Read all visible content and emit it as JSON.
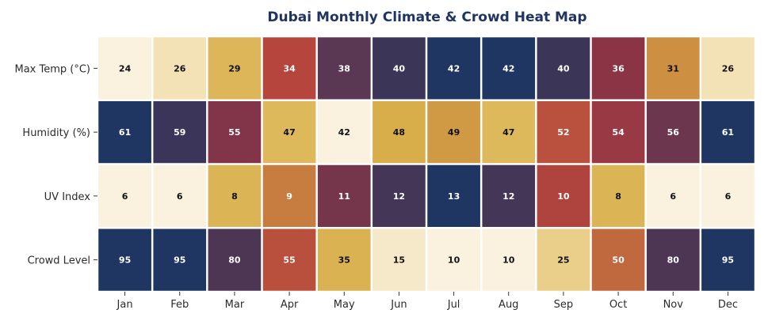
{
  "chart_data": {
    "type": "heatmap",
    "title": "Dubai Monthly Climate & Crowd Heat Map",
    "xlabel": "",
    "ylabel": "",
    "columns": [
      "Jan",
      "Feb",
      "Mar",
      "Apr",
      "May",
      "Jun",
      "Jul",
      "Aug",
      "Sep",
      "Oct",
      "Nov",
      "Dec"
    ],
    "rows": [
      {
        "name": "Max Temp (°C)",
        "values": [
          24,
          26,
          29,
          34,
          38,
          40,
          42,
          42,
          40,
          36,
          31,
          26
        ]
      },
      {
        "name": "Humidity (%)",
        "values": [
          61,
          59,
          55,
          47,
          42,
          48,
          49,
          47,
          52,
          54,
          56,
          61
        ]
      },
      {
        "name": "UV Index",
        "values": [
          6,
          6,
          8,
          9,
          11,
          12,
          13,
          12,
          10,
          8,
          6,
          6
        ]
      },
      {
        "name": "Crowd Level",
        "values": [
          95,
          95,
          80,
          55,
          35,
          15,
          10,
          10,
          25,
          50,
          80,
          95
        ]
      }
    ],
    "colormap": [
      "#faf1de",
      "#f3e2b6",
      "#e2c26a",
      "#d6aa45",
      "#c4743f",
      "#b5453d",
      "#8a3446",
      "#5a3752",
      "#3b3558",
      "#1f3662"
    ],
    "normalization": "per-row",
    "grid": false,
    "legend": "none"
  }
}
